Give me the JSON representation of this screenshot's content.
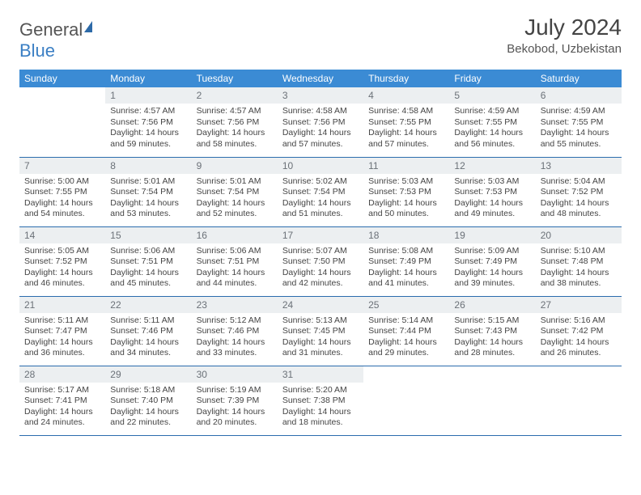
{
  "brand": {
    "text1": "General",
    "text2": "Blue"
  },
  "title": "July 2024",
  "location": "Bekobod, Uzbekistan",
  "weekday_labels": [
    "Sunday",
    "Monday",
    "Tuesday",
    "Wednesday",
    "Thursday",
    "Friday",
    "Saturday"
  ],
  "colors": {
    "header_bg": "#3b8bd4",
    "header_fg": "#ffffff",
    "daynum_bg": "#eceff1",
    "daynum_fg": "#6b7178",
    "cell_border": "#2b6cad",
    "body_text": "#444444"
  },
  "rows": [
    [
      {
        "empty": true
      },
      {
        "day": "1",
        "sunrise": "4:57 AM",
        "sunset": "7:56 PM",
        "dlh": "14",
        "dlm": "59"
      },
      {
        "day": "2",
        "sunrise": "4:57 AM",
        "sunset": "7:56 PM",
        "dlh": "14",
        "dlm": "58"
      },
      {
        "day": "3",
        "sunrise": "4:58 AM",
        "sunset": "7:56 PM",
        "dlh": "14",
        "dlm": "57"
      },
      {
        "day": "4",
        "sunrise": "4:58 AM",
        "sunset": "7:55 PM",
        "dlh": "14",
        "dlm": "57"
      },
      {
        "day": "5",
        "sunrise": "4:59 AM",
        "sunset": "7:55 PM",
        "dlh": "14",
        "dlm": "56"
      },
      {
        "day": "6",
        "sunrise": "4:59 AM",
        "sunset": "7:55 PM",
        "dlh": "14",
        "dlm": "55"
      }
    ],
    [
      {
        "day": "7",
        "sunrise": "5:00 AM",
        "sunset": "7:55 PM",
        "dlh": "14",
        "dlm": "54"
      },
      {
        "day": "8",
        "sunrise": "5:01 AM",
        "sunset": "7:54 PM",
        "dlh": "14",
        "dlm": "53"
      },
      {
        "day": "9",
        "sunrise": "5:01 AM",
        "sunset": "7:54 PM",
        "dlh": "14",
        "dlm": "52"
      },
      {
        "day": "10",
        "sunrise": "5:02 AM",
        "sunset": "7:54 PM",
        "dlh": "14",
        "dlm": "51"
      },
      {
        "day": "11",
        "sunrise": "5:03 AM",
        "sunset": "7:53 PM",
        "dlh": "14",
        "dlm": "50"
      },
      {
        "day": "12",
        "sunrise": "5:03 AM",
        "sunset": "7:53 PM",
        "dlh": "14",
        "dlm": "49"
      },
      {
        "day": "13",
        "sunrise": "5:04 AM",
        "sunset": "7:52 PM",
        "dlh": "14",
        "dlm": "48"
      }
    ],
    [
      {
        "day": "14",
        "sunrise": "5:05 AM",
        "sunset": "7:52 PM",
        "dlh": "14",
        "dlm": "46"
      },
      {
        "day": "15",
        "sunrise": "5:06 AM",
        "sunset": "7:51 PM",
        "dlh": "14",
        "dlm": "45"
      },
      {
        "day": "16",
        "sunrise": "5:06 AM",
        "sunset": "7:51 PM",
        "dlh": "14",
        "dlm": "44"
      },
      {
        "day": "17",
        "sunrise": "5:07 AM",
        "sunset": "7:50 PM",
        "dlh": "14",
        "dlm": "42"
      },
      {
        "day": "18",
        "sunrise": "5:08 AM",
        "sunset": "7:49 PM",
        "dlh": "14",
        "dlm": "41"
      },
      {
        "day": "19",
        "sunrise": "5:09 AM",
        "sunset": "7:49 PM",
        "dlh": "14",
        "dlm": "39"
      },
      {
        "day": "20",
        "sunrise": "5:10 AM",
        "sunset": "7:48 PM",
        "dlh": "14",
        "dlm": "38"
      }
    ],
    [
      {
        "day": "21",
        "sunrise": "5:11 AM",
        "sunset": "7:47 PM",
        "dlh": "14",
        "dlm": "36"
      },
      {
        "day": "22",
        "sunrise": "5:11 AM",
        "sunset": "7:46 PM",
        "dlh": "14",
        "dlm": "34"
      },
      {
        "day": "23",
        "sunrise": "5:12 AM",
        "sunset": "7:46 PM",
        "dlh": "14",
        "dlm": "33"
      },
      {
        "day": "24",
        "sunrise": "5:13 AM",
        "sunset": "7:45 PM",
        "dlh": "14",
        "dlm": "31"
      },
      {
        "day": "25",
        "sunrise": "5:14 AM",
        "sunset": "7:44 PM",
        "dlh": "14",
        "dlm": "29"
      },
      {
        "day": "26",
        "sunrise": "5:15 AM",
        "sunset": "7:43 PM",
        "dlh": "14",
        "dlm": "28"
      },
      {
        "day": "27",
        "sunrise": "5:16 AM",
        "sunset": "7:42 PM",
        "dlh": "14",
        "dlm": "26"
      }
    ],
    [
      {
        "day": "28",
        "sunrise": "5:17 AM",
        "sunset": "7:41 PM",
        "dlh": "14",
        "dlm": "24"
      },
      {
        "day": "29",
        "sunrise": "5:18 AM",
        "sunset": "7:40 PM",
        "dlh": "14",
        "dlm": "22"
      },
      {
        "day": "30",
        "sunrise": "5:19 AM",
        "sunset": "7:39 PM",
        "dlh": "14",
        "dlm": "20"
      },
      {
        "day": "31",
        "sunrise": "5:20 AM",
        "sunset": "7:38 PM",
        "dlh": "14",
        "dlm": "18"
      },
      {
        "empty": true
      },
      {
        "empty": true
      },
      {
        "empty": true
      }
    ]
  ],
  "labels": {
    "sunrise": "Sunrise:",
    "sunset": "Sunset:",
    "daylight_prefix": "Daylight:",
    "hours_word": "hours",
    "and_word": "and",
    "minutes_word": "minutes."
  }
}
